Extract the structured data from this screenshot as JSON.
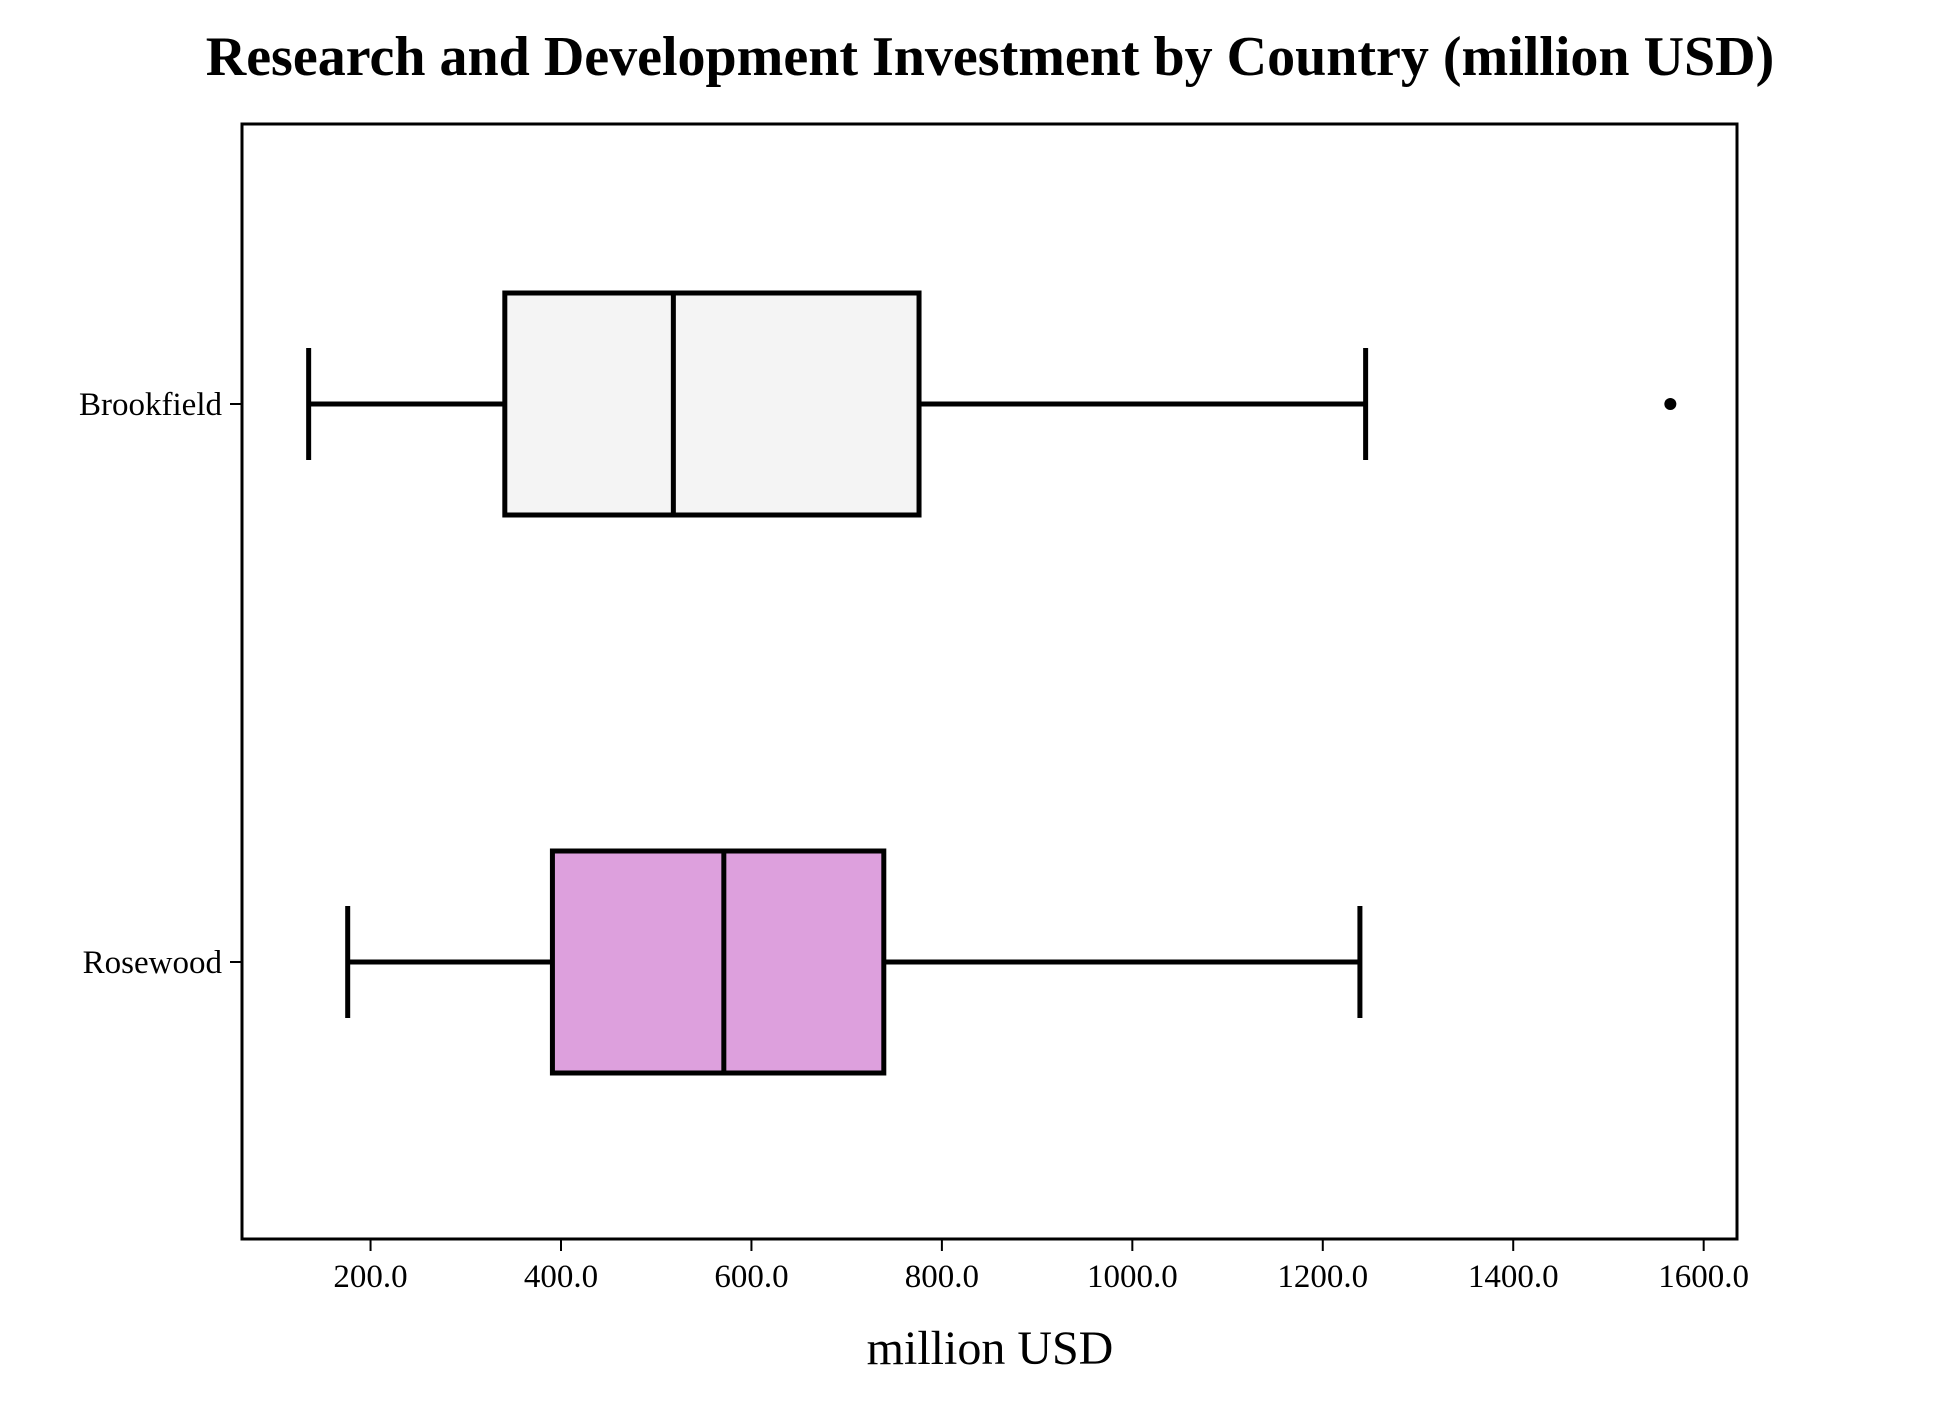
{
  "chart_data": {
    "type": "boxplot",
    "orientation": "horizontal",
    "title": "Research and Development Investment by Country (million USD)",
    "xlabel": "million USD",
    "ylabel": "",
    "xlim": [
      65,
      1635
    ],
    "x_ticks": [
      200,
      400,
      600,
      800,
      1000,
      1200,
      1400,
      1600
    ],
    "x_tick_labels": [
      "200.0",
      "400.0",
      "600.0",
      "800.0",
      "1000.0",
      "1200.0",
      "1400.0",
      "1600.0"
    ],
    "grid": false,
    "categories": [
      "Brookfield",
      "Rosewood"
    ],
    "series": [
      {
        "category": "Brookfield",
        "whisker_low": 135,
        "q1": 341,
        "median": 518,
        "q3": 776,
        "whisker_high": 1245,
        "outliers": [
          1565
        ],
        "color": "#f4f4f4"
      },
      {
        "category": "Rosewood",
        "whisker_low": 176,
        "q1": 391,
        "median": 571,
        "q3": 739,
        "whisker_high": 1239,
        "outliers": [],
        "color": "#dda0dd"
      }
    ]
  }
}
